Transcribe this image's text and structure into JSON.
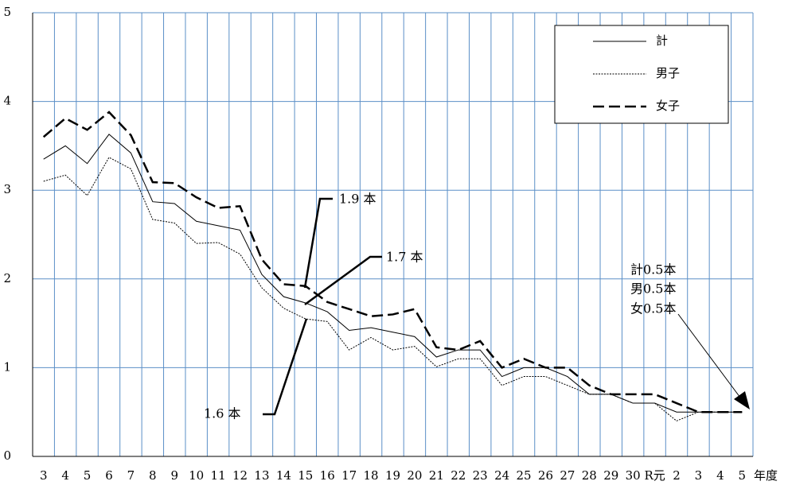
{
  "chart_data": {
    "type": "line",
    "categories": [
      "3",
      "4",
      "5",
      "6",
      "7",
      "8",
      "9",
      "10",
      "11",
      "12",
      "13",
      "14",
      "15",
      "16",
      "17",
      "18",
      "19",
      "20",
      "21",
      "22",
      "23",
      "24",
      "25",
      "26",
      "27",
      "28",
      "29",
      "30",
      "R元",
      "2",
      "3",
      "4",
      "5"
    ],
    "x_unit": "年度",
    "ylim": [
      0,
      5
    ],
    "yticks": [
      0,
      1,
      2,
      3,
      4,
      5
    ],
    "grid": true,
    "legend": "upper right",
    "series": [
      {
        "name": "計",
        "color": "#000000",
        "style": "solid",
        "values": [
          3.35,
          3.5,
          3.3,
          3.63,
          3.42,
          2.87,
          2.85,
          2.65,
          2.6,
          2.55,
          2.05,
          1.8,
          1.73,
          1.63,
          1.42,
          1.45,
          1.4,
          1.35,
          1.12,
          1.2,
          1.2,
          0.9,
          1.0,
          1.0,
          0.9,
          0.7,
          0.7,
          0.6,
          0.6,
          0.5,
          0.5,
          0.5,
          0.5
        ]
      },
      {
        "name": "男子",
        "color": "#000000",
        "style": "dotted",
        "values": [
          3.1,
          3.17,
          2.94,
          3.37,
          3.24,
          2.67,
          2.63,
          2.4,
          2.41,
          2.28,
          1.9,
          1.67,
          1.55,
          1.52,
          1.2,
          1.34,
          1.2,
          1.24,
          1.01,
          1.1,
          1.1,
          0.8,
          0.9,
          0.9,
          0.8,
          0.7,
          0.7,
          0.6,
          0.6,
          0.4,
          0.5,
          0.5,
          0.5
        ]
      },
      {
        "name": "女子",
        "color": "#000000",
        "style": "dashed",
        "values": [
          3.6,
          3.81,
          3.68,
          3.88,
          3.62,
          3.09,
          3.08,
          2.92,
          2.8,
          2.82,
          2.22,
          1.94,
          1.92,
          1.74,
          1.66,
          1.58,
          1.6,
          1.66,
          1.23,
          1.2,
          1.3,
          1.0,
          1.1,
          1.0,
          1.0,
          0.8,
          0.7,
          0.7,
          0.7,
          0.6,
          0.5,
          0.5,
          0.5
        ]
      }
    ],
    "annotations": [
      "1.9 本",
      "1.7 本",
      "1.6 本",
      "計0.5本",
      "男0.5本",
      "女0.5本"
    ]
  }
}
